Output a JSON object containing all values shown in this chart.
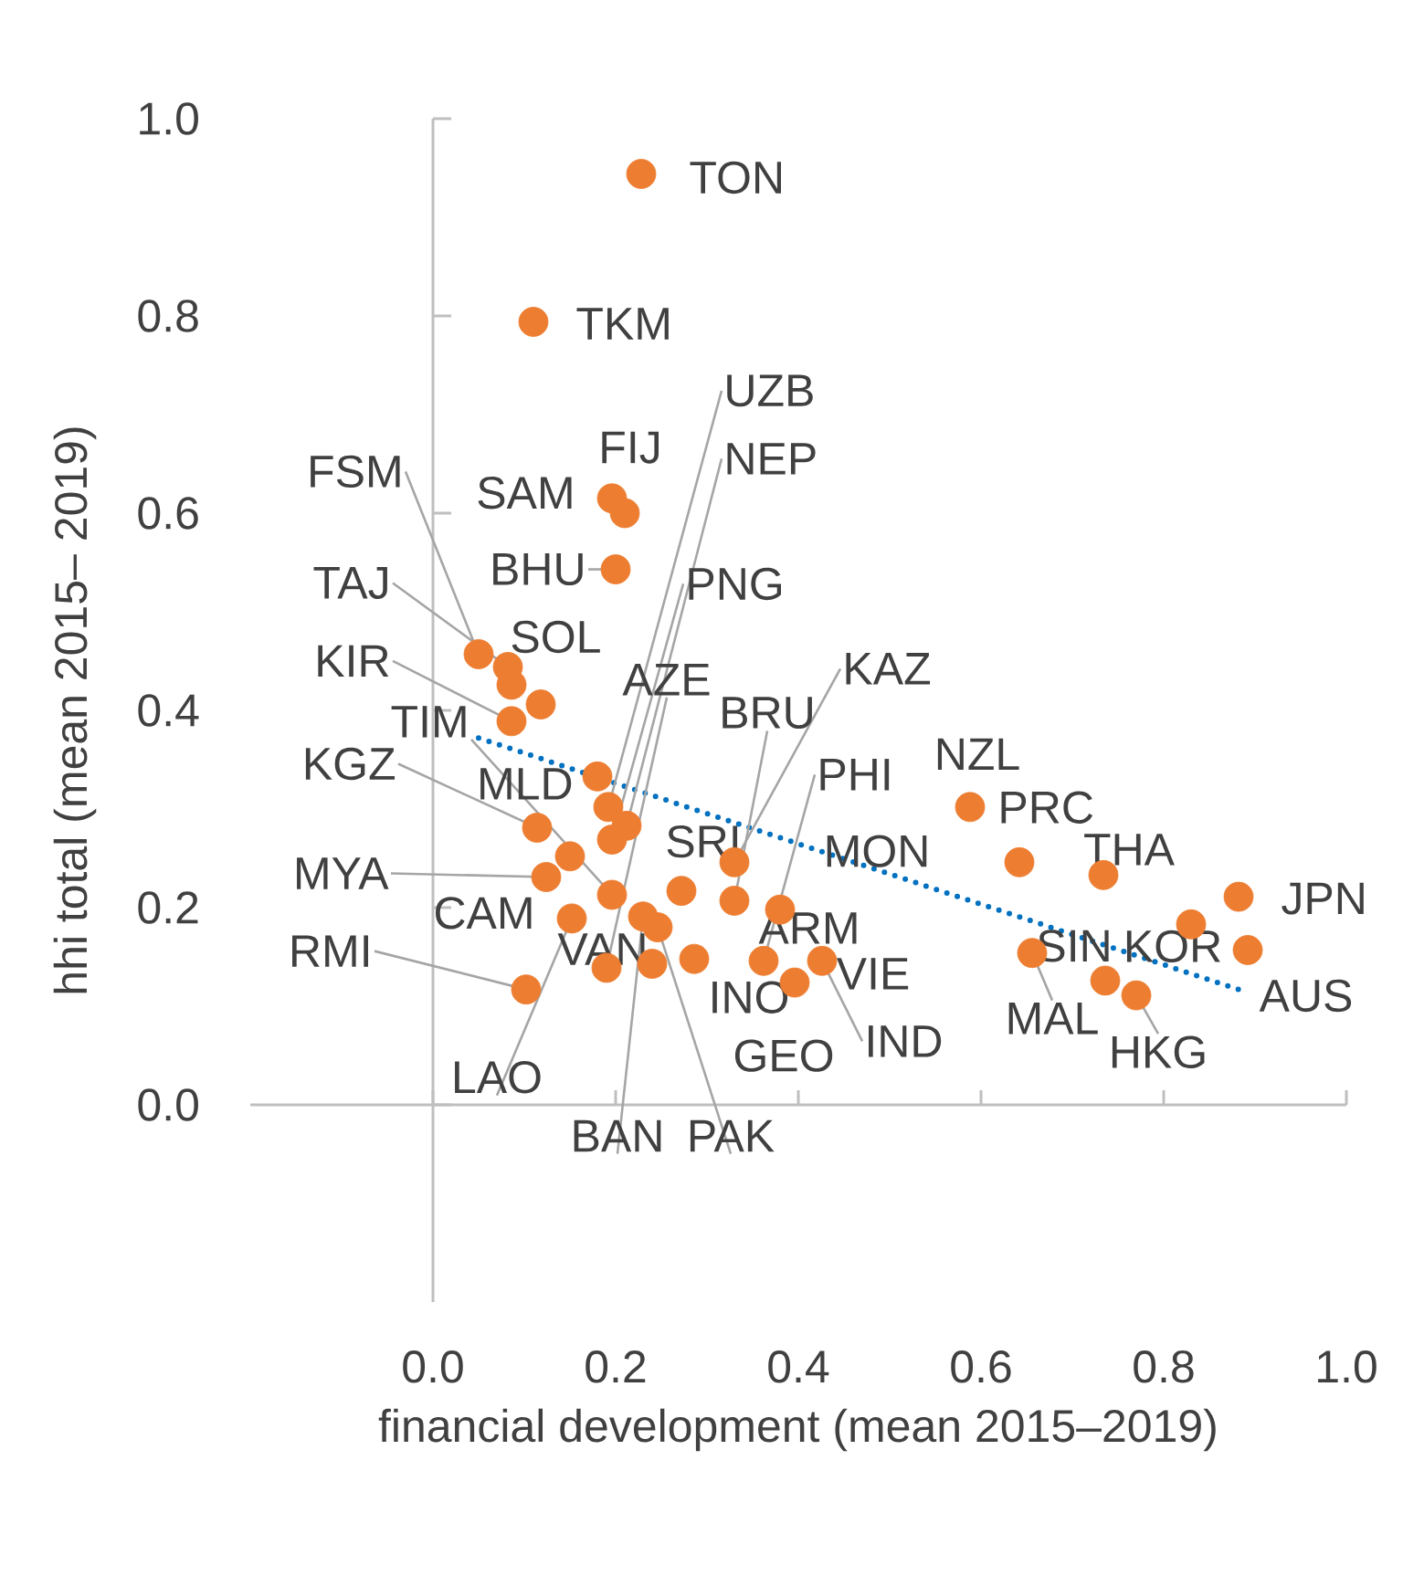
{
  "chart_data": {
    "type": "scatter",
    "xlabel": "financial development (mean 2015–2019)",
    "ylabel": "hhi total (mean 2015– 2019)",
    "xlim": [
      -0.2,
      1
    ],
    "ylim": [
      -0.2,
      1
    ],
    "xticks": [
      {
        "value": 0,
        "label": "0.0"
      },
      0.2,
      0.4,
      0.6,
      0.8,
      {
        "value": 1,
        "label": "1.0"
      }
    ],
    "yticks": [
      {
        "value": 0,
        "label": "0.0"
      },
      0.2,
      0.4,
      0.6,
      0.8,
      {
        "value": 1,
        "label": "1.0"
      }
    ],
    "series": [
      {
        "type": "scatter",
        "color": "#ed7d31",
        "marker": "circle",
        "x": [
          0.228,
          0.11,
          0.05,
          0.196,
          0.21,
          0.192,
          0.212,
          0.2,
          0.196,
          0.082,
          0.118,
          0.086,
          0.33,
          0.33,
          0.114,
          0.196,
          0.18,
          0.19,
          0.362,
          0.588,
          0.642,
          0.15,
          0.272,
          0.38,
          0.734,
          0.882,
          0.124,
          0.736,
          0.102,
          0.24,
          0.286,
          0.426,
          0.656,
          0.83,
          0.892,
          0.77,
          0.396,
          0.152,
          0.23,
          0.246,
          0.086
        ],
        "values": [
          0.944,
          0.794,
          0.457,
          0.615,
          0.6,
          0.302,
          0.283,
          0.543,
          0.269,
          0.444,
          0.406,
          0.389,
          0.207,
          0.246,
          0.281,
          0.213,
          0.333,
          0.139,
          0.146,
          0.302,
          0.246,
          0.252,
          0.217,
          0.198,
          0.233,
          0.211,
          0.231,
          0.126,
          0.117,
          0.143,
          0.148,
          0.146,
          0.154,
          0.183,
          0.157,
          0.111,
          0.124,
          0.189,
          0.191,
          0.18,
          0.426
        ]
      },
      {
        "type": "line",
        "color": "#0070c0",
        "marker": "none",
        "line_style": "dotted",
        "x": [
          0.05,
          0.882
        ],
        "values": [
          0.372,
          0.117
        ]
      }
    ],
    "annotations": [
      {
        "text": "TON",
        "x": 0.228,
        "y": 0.944
      },
      {
        "text": "TKM",
        "x": 0.11,
        "y": 0.794
      },
      {
        "text": "FSM",
        "x": 0.05,
        "y": 0.457
      },
      {
        "text": "SAM",
        "x": 0.196,
        "y": 0.615
      },
      {
        "text": "FIJ",
        "x": 0.21,
        "y": 0.6
      },
      {
        "text": "UZB",
        "x": 0.192,
        "y": 0.302
      },
      {
        "text": "NEP",
        "x": 0.212,
        "y": 0.283
      },
      {
        "text": "BHU",
        "x": 0.2,
        "y": 0.543
      },
      {
        "text": "PNG",
        "x": 0.196,
        "y": 0.269
      },
      {
        "text": "TAJ",
        "x": 0.082,
        "y": 0.444
      },
      {
        "text": "SOL",
        "x": 0.118,
        "y": 0.406
      },
      {
        "text": "KIR",
        "x": 0.086,
        "y": 0.389
      },
      {
        "text": "BRU",
        "x": 0.33,
        "y": 0.207
      },
      {
        "text": "KAZ",
        "x": 0.33,
        "y": 0.246
      },
      {
        "text": "KGZ",
        "x": 0.114,
        "y": 0.281
      },
      {
        "text": "TIM",
        "x": 0.196,
        "y": 0.213
      },
      {
        "text": "MLD",
        "x": 0.18,
        "y": 0.333
      },
      {
        "text": "AZE",
        "x": 0.19,
        "y": 0.139
      },
      {
        "text": "PHI",
        "x": 0.362,
        "y": 0.146
      },
      {
        "text": "NZL",
        "x": 0.588,
        "y": 0.302
      },
      {
        "text": "PRC",
        "x": 0.642,
        "y": 0.246
      },
      {
        "text": "CAM",
        "x": 0.15,
        "y": 0.252
      },
      {
        "text": "SRI",
        "x": 0.272,
        "y": 0.217
      },
      {
        "text": "MON",
        "x": 0.38,
        "y": 0.198
      },
      {
        "text": "THA",
        "x": 0.734,
        "y": 0.233
      },
      {
        "text": "JPN",
        "x": 0.882,
        "y": 0.211
      },
      {
        "text": "MYA",
        "x": 0.124,
        "y": 0.231
      },
      {
        "text": "ARM",
        "x": 0.362,
        "y": 0.146
      },
      {
        "text": "SIN",
        "x": 0.736,
        "y": 0.126
      },
      {
        "text": "RMI",
        "x": 0.102,
        "y": 0.117
      },
      {
        "text": "VAN",
        "x": 0.24,
        "y": 0.143
      },
      {
        "text": "INO",
        "x": 0.286,
        "y": 0.148
      },
      {
        "text": "VIE",
        "x": 0.426,
        "y": 0.146
      },
      {
        "text": "IND",
        "x": 0.426,
        "y": 0.146
      },
      {
        "text": "MAL",
        "x": 0.656,
        "y": 0.154
      },
      {
        "text": "KOR",
        "x": 0.83,
        "y": 0.183
      },
      {
        "text": "AUS",
        "x": 0.892,
        "y": 0.157
      },
      {
        "text": "HKG",
        "x": 0.77,
        "y": 0.111
      },
      {
        "text": "GEO",
        "x": 0.396,
        "y": 0.124
      },
      {
        "text": "LAO",
        "x": 0.152,
        "y": 0.189
      },
      {
        "text": "BAN",
        "x": 0.23,
        "y": 0.191
      },
      {
        "text": "PAK",
        "x": 0.246,
        "y": 0.18
      }
    ]
  }
}
